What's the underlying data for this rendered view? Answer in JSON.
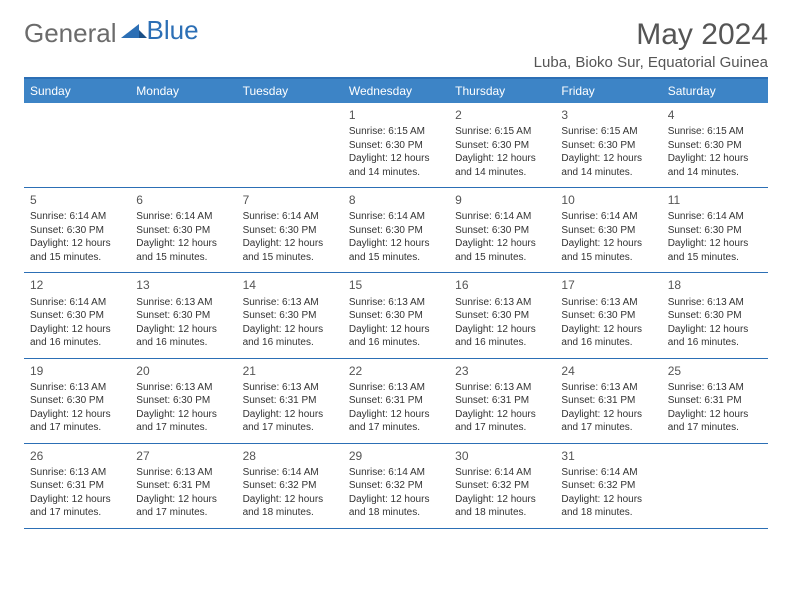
{
  "logo": {
    "text1": "General",
    "text2": "Blue"
  },
  "title": "May 2024",
  "location": "Luba, Bioko Sur, Equatorial Guinea",
  "colors": {
    "headerBar": "#3d84c6",
    "borderBlue": "#2c6fb5",
    "logoGray": "#6b6b6b",
    "logoBlue": "#2c6fb5",
    "titleGray": "#555555",
    "text": "#333333",
    "background": "#ffffff"
  },
  "dayHeaders": [
    "Sunday",
    "Monday",
    "Tuesday",
    "Wednesday",
    "Thursday",
    "Friday",
    "Saturday"
  ],
  "weeks": [
    [
      {
        "empty": true
      },
      {
        "empty": true
      },
      {
        "empty": true
      },
      {
        "num": "1",
        "sunrise": "6:15 AM",
        "sunset": "6:30 PM",
        "daylight": "12 hours and 14 minutes."
      },
      {
        "num": "2",
        "sunrise": "6:15 AM",
        "sunset": "6:30 PM",
        "daylight": "12 hours and 14 minutes."
      },
      {
        "num": "3",
        "sunrise": "6:15 AM",
        "sunset": "6:30 PM",
        "daylight": "12 hours and 14 minutes."
      },
      {
        "num": "4",
        "sunrise": "6:15 AM",
        "sunset": "6:30 PM",
        "daylight": "12 hours and 14 minutes."
      }
    ],
    [
      {
        "num": "5",
        "sunrise": "6:14 AM",
        "sunset": "6:30 PM",
        "daylight": "12 hours and 15 minutes."
      },
      {
        "num": "6",
        "sunrise": "6:14 AM",
        "sunset": "6:30 PM",
        "daylight": "12 hours and 15 minutes."
      },
      {
        "num": "7",
        "sunrise": "6:14 AM",
        "sunset": "6:30 PM",
        "daylight": "12 hours and 15 minutes."
      },
      {
        "num": "8",
        "sunrise": "6:14 AM",
        "sunset": "6:30 PM",
        "daylight": "12 hours and 15 minutes."
      },
      {
        "num": "9",
        "sunrise": "6:14 AM",
        "sunset": "6:30 PM",
        "daylight": "12 hours and 15 minutes."
      },
      {
        "num": "10",
        "sunrise": "6:14 AM",
        "sunset": "6:30 PM",
        "daylight": "12 hours and 15 minutes."
      },
      {
        "num": "11",
        "sunrise": "6:14 AM",
        "sunset": "6:30 PM",
        "daylight": "12 hours and 15 minutes."
      }
    ],
    [
      {
        "num": "12",
        "sunrise": "6:14 AM",
        "sunset": "6:30 PM",
        "daylight": "12 hours and 16 minutes."
      },
      {
        "num": "13",
        "sunrise": "6:13 AM",
        "sunset": "6:30 PM",
        "daylight": "12 hours and 16 minutes."
      },
      {
        "num": "14",
        "sunrise": "6:13 AM",
        "sunset": "6:30 PM",
        "daylight": "12 hours and 16 minutes."
      },
      {
        "num": "15",
        "sunrise": "6:13 AM",
        "sunset": "6:30 PM",
        "daylight": "12 hours and 16 minutes."
      },
      {
        "num": "16",
        "sunrise": "6:13 AM",
        "sunset": "6:30 PM",
        "daylight": "12 hours and 16 minutes."
      },
      {
        "num": "17",
        "sunrise": "6:13 AM",
        "sunset": "6:30 PM",
        "daylight": "12 hours and 16 minutes."
      },
      {
        "num": "18",
        "sunrise": "6:13 AM",
        "sunset": "6:30 PM",
        "daylight": "12 hours and 16 minutes."
      }
    ],
    [
      {
        "num": "19",
        "sunrise": "6:13 AM",
        "sunset": "6:30 PM",
        "daylight": "12 hours and 17 minutes."
      },
      {
        "num": "20",
        "sunrise": "6:13 AM",
        "sunset": "6:30 PM",
        "daylight": "12 hours and 17 minutes."
      },
      {
        "num": "21",
        "sunrise": "6:13 AM",
        "sunset": "6:31 PM",
        "daylight": "12 hours and 17 minutes."
      },
      {
        "num": "22",
        "sunrise": "6:13 AM",
        "sunset": "6:31 PM",
        "daylight": "12 hours and 17 minutes."
      },
      {
        "num": "23",
        "sunrise": "6:13 AM",
        "sunset": "6:31 PM",
        "daylight": "12 hours and 17 minutes."
      },
      {
        "num": "24",
        "sunrise": "6:13 AM",
        "sunset": "6:31 PM",
        "daylight": "12 hours and 17 minutes."
      },
      {
        "num": "25",
        "sunrise": "6:13 AM",
        "sunset": "6:31 PM",
        "daylight": "12 hours and 17 minutes."
      }
    ],
    [
      {
        "num": "26",
        "sunrise": "6:13 AM",
        "sunset": "6:31 PM",
        "daylight": "12 hours and 17 minutes."
      },
      {
        "num": "27",
        "sunrise": "6:13 AM",
        "sunset": "6:31 PM",
        "daylight": "12 hours and 17 minutes."
      },
      {
        "num": "28",
        "sunrise": "6:14 AM",
        "sunset": "6:32 PM",
        "daylight": "12 hours and 18 minutes."
      },
      {
        "num": "29",
        "sunrise": "6:14 AM",
        "sunset": "6:32 PM",
        "daylight": "12 hours and 18 minutes."
      },
      {
        "num": "30",
        "sunrise": "6:14 AM",
        "sunset": "6:32 PM",
        "daylight": "12 hours and 18 minutes."
      },
      {
        "num": "31",
        "sunrise": "6:14 AM",
        "sunset": "6:32 PM",
        "daylight": "12 hours and 18 minutes."
      },
      {
        "empty": true
      }
    ]
  ],
  "labels": {
    "sunrise": "Sunrise:",
    "sunset": "Sunset:",
    "daylight": "Daylight:"
  }
}
